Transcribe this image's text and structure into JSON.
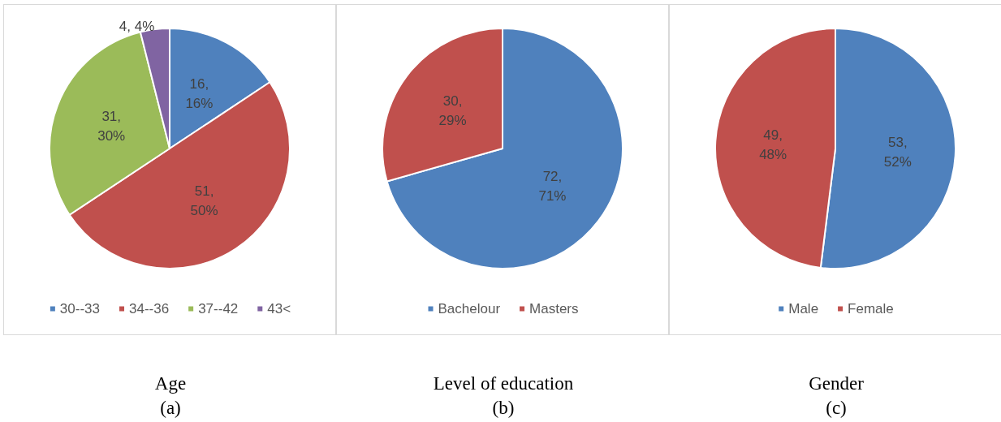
{
  "chart_data": [
    {
      "type": "pie",
      "title": "Age",
      "subtitle": "(a)",
      "categories": [
        "30--33",
        "34--36",
        "37--42",
        "43<"
      ],
      "values": [
        16,
        51,
        31,
        4
      ],
      "colors": [
        "#4f81bd",
        "#c0504d",
        "#9bbb59",
        "#8064a2"
      ],
      "value_labels": [
        "16, 16%",
        "51, 50%",
        "31, 30%",
        "4, 4%"
      ],
      "legend": "bottom"
    },
    {
      "type": "pie",
      "title": "Level of education",
      "subtitle": "(b)",
      "categories": [
        "Bachelour",
        "Masters"
      ],
      "values": [
        72,
        30
      ],
      "colors": [
        "#4f81bd",
        "#c0504d"
      ],
      "value_labels": [
        "72, 71%",
        "30, 29%"
      ],
      "legend": "bottom"
    },
    {
      "type": "pie",
      "title": "Gender",
      "subtitle": "(c)",
      "categories": [
        "Male",
        "Female"
      ],
      "values": [
        53,
        49
      ],
      "colors": [
        "#4f81bd",
        "#c0504d"
      ],
      "value_labels": [
        "53, 52%",
        "49, 48%"
      ],
      "legend": "bottom"
    }
  ]
}
